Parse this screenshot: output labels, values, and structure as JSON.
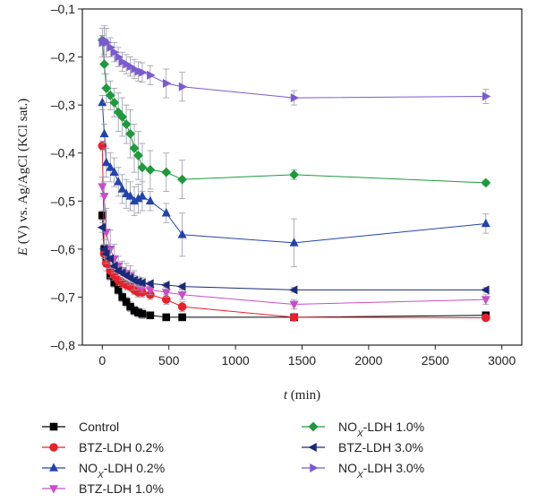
{
  "chart_data": {
    "type": "scatter",
    "xlabel_italic": "t",
    "xlabel_unit": " (min)",
    "ylabel_italic": "E",
    "ylabel_rest": " (V) vs. Ag/AgCl (KCl sat.)",
    "xlim": [
      -150,
      3150
    ],
    "ylim": [
      -0.8,
      -0.1
    ],
    "x_ticks": [
      0,
      500,
      1000,
      1500,
      2000,
      2500,
      3000
    ],
    "x_tick_labels": [
      "0",
      "500",
      "1000",
      "1500",
      "2000",
      "2500",
      "3000"
    ],
    "y_ticks": [
      -0.8,
      -0.7,
      -0.6,
      -0.5,
      -0.4,
      -0.3,
      -0.2,
      -0.1
    ],
    "y_tick_labels": [
      "–0,8",
      "–0,7",
      "–0,6",
      "–0,5",
      "–0,4",
      "–0,3",
      "–0,2",
      "–0,1"
    ],
    "grid": false,
    "legend_position": "bottom",
    "series": [
      {
        "name": "Control",
        "name_pre": "Control",
        "name_sub": "",
        "name_post": "",
        "color": "#000000",
        "marker": "square",
        "x": [
          0,
          15,
          30,
          60,
          90,
          120,
          150,
          180,
          210,
          240,
          270,
          300,
          360,
          480,
          600,
          1440,
          2880
        ],
        "y": [
          -0.53,
          -0.6,
          -0.625,
          -0.655,
          -0.67,
          -0.685,
          -0.7,
          -0.71,
          -0.72,
          -0.728,
          -0.732,
          -0.735,
          -0.738,
          -0.742,
          -0.742,
          -0.742,
          -0.738
        ],
        "err": [
          0.01,
          0.01,
          0.01,
          0.01,
          0.01,
          0.01,
          0.01,
          0.01,
          0.01,
          0.01,
          0.01,
          0.01,
          0.005,
          0.005,
          0.005,
          0.005,
          0.005
        ]
      },
      {
        "name": "BTZ-LDH 0.2%",
        "name_pre": "BTZ-LDH 0.2%",
        "name_sub": "",
        "name_post": "",
        "color": "#e8202a",
        "marker": "circle",
        "x": [
          0,
          15,
          30,
          60,
          90,
          120,
          150,
          180,
          210,
          240,
          270,
          300,
          360,
          480,
          600,
          1440,
          2880
        ],
        "y": [
          -0.385,
          -0.61,
          -0.63,
          -0.645,
          -0.655,
          -0.665,
          -0.67,
          -0.675,
          -0.678,
          -0.685,
          -0.69,
          -0.69,
          -0.695,
          -0.705,
          -0.72,
          -0.742,
          -0.743
        ],
        "err": [
          0.01,
          0.02,
          0.015,
          0.015,
          0.01,
          0.01,
          0.01,
          0.01,
          0.01,
          0.01,
          0.01,
          0.01,
          0.01,
          0.01,
          0.01,
          0.005,
          0.005
        ]
      },
      {
        "name": "NOX-LDH 0.2%",
        "name_pre": "NO",
        "name_sub": "X",
        "name_post": "-LDH 0.2%",
        "color": "#2244aa",
        "marker": "triangle-up",
        "x": [
          0,
          15,
          30,
          60,
          90,
          120,
          150,
          180,
          210,
          240,
          270,
          300,
          360,
          480,
          600,
          1440,
          2880
        ],
        "y": [
          -0.295,
          -0.36,
          -0.42,
          -0.43,
          -0.44,
          -0.46,
          -0.475,
          -0.485,
          -0.49,
          -0.5,
          -0.495,
          -0.49,
          -0.5,
          -0.525,
          -0.57,
          -0.587,
          -0.547
        ],
        "err": [
          0.015,
          0.02,
          0.03,
          0.03,
          0.03,
          0.03,
          0.03,
          0.03,
          0.03,
          0.03,
          0.03,
          0.03,
          0.02,
          0.02,
          0.045,
          0.05,
          0.02
        ]
      },
      {
        "name": "BTZ-LDH 1.0%",
        "name_pre": "BTZ-LDH 1.0%",
        "name_sub": "",
        "name_post": "",
        "color": "#c84fc8",
        "marker": "triangle-down",
        "x": [
          0,
          15,
          30,
          60,
          90,
          120,
          150,
          180,
          210,
          240,
          270,
          300,
          360,
          480,
          600,
          1440,
          2880
        ],
        "y": [
          -0.47,
          -0.49,
          -0.565,
          -0.6,
          -0.62,
          -0.635,
          -0.645,
          -0.65,
          -0.655,
          -0.665,
          -0.675,
          -0.68,
          -0.685,
          -0.69,
          -0.695,
          -0.715,
          -0.705
        ],
        "err": [
          0.02,
          0.03,
          0.05,
          0.04,
          0.03,
          0.02,
          0.02,
          0.02,
          0.02,
          0.02,
          0.01,
          0.01,
          0.01,
          0.01,
          0.01,
          0.01,
          0.01
        ]
      },
      {
        "name": "NOX-LDH 1.0%",
        "name_pre": "NO",
        "name_sub": "X",
        "name_post": "-LDH 1.0%",
        "color": "#1e9a3c",
        "marker": "diamond",
        "x": [
          0,
          15,
          30,
          60,
          90,
          120,
          150,
          180,
          210,
          240,
          270,
          300,
          360,
          480,
          600,
          1440,
          2880
        ],
        "y": [
          -0.165,
          -0.215,
          -0.265,
          -0.28,
          -0.295,
          -0.315,
          -0.325,
          -0.34,
          -0.36,
          -0.39,
          -0.405,
          -0.43,
          -0.435,
          -0.44,
          -0.455,
          -0.445,
          -0.462
        ],
        "err": [
          0.01,
          0.02,
          0.03,
          0.03,
          0.03,
          0.04,
          0.04,
          0.04,
          0.05,
          0.05,
          0.05,
          0.05,
          0.04,
          0.04,
          0.04,
          0.01,
          0.005
        ]
      },
      {
        "name": "BTZ-LDH 3.0%",
        "name_pre": "BTZ-LDH 3.0%",
        "name_sub": "",
        "name_post": "",
        "color": "#1a2a7a",
        "marker": "triangle-left",
        "x": [
          0,
          15,
          30,
          60,
          90,
          120,
          150,
          180,
          210,
          240,
          270,
          300,
          360,
          480,
          600,
          1440,
          2880
        ],
        "y": [
          -0.555,
          -0.6,
          -0.61,
          -0.62,
          -0.635,
          -0.645,
          -0.65,
          -0.655,
          -0.66,
          -0.665,
          -0.668,
          -0.67,
          -0.672,
          -0.675,
          -0.678,
          -0.685,
          -0.685
        ],
        "err": [
          0.01,
          0.02,
          0.02,
          0.02,
          0.01,
          0.01,
          0.01,
          0.01,
          0.01,
          0.01,
          0.01,
          0.01,
          0.005,
          0.005,
          0.005,
          0.005,
          0.005
        ]
      },
      {
        "name": "NOX-LDH 3.0%",
        "name_pre": "NO",
        "name_sub": "X",
        "name_post": "-LDH 3.0%",
        "color": "#7a5ad0",
        "marker": "triangle-right",
        "x": [
          0,
          15,
          30,
          60,
          90,
          120,
          150,
          180,
          210,
          240,
          270,
          300,
          360,
          480,
          600,
          1440,
          2880
        ],
        "y": [
          -0.17,
          -0.165,
          -0.17,
          -0.18,
          -0.19,
          -0.2,
          -0.21,
          -0.215,
          -0.22,
          -0.225,
          -0.23,
          -0.232,
          -0.238,
          -0.255,
          -0.262,
          -0.285,
          -0.282
        ],
        "err": [
          0.03,
          0.03,
          0.03,
          0.02,
          0.02,
          0.02,
          0.02,
          0.02,
          0.02,
          0.02,
          0.02,
          0.02,
          0.02,
          0.03,
          0.03,
          0.015,
          0.015
        ]
      }
    ]
  }
}
